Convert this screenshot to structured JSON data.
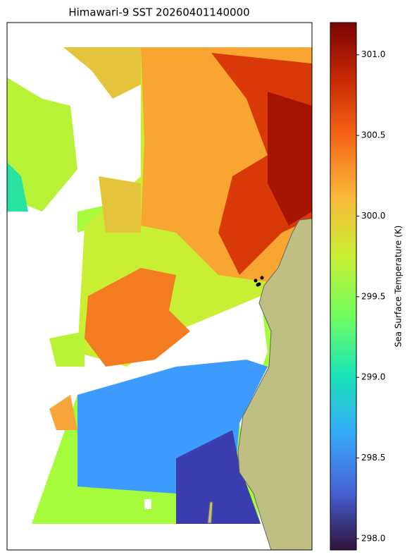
{
  "chart_data": {
    "type": "heatmap",
    "title": "Himawari-9 SST 20260401140000",
    "colorbar": {
      "label": "Sea Surface Temperature (K)",
      "colormap": "turbo",
      "lim": [
        297.93,
        301.2
      ],
      "ticks": [
        {
          "value": 298,
          "label": "298.0"
        },
        {
          "value": 298.5,
          "label": "298.5"
        },
        {
          "value": 299,
          "label": "299.0"
        },
        {
          "value": 299.5,
          "label": "299.5"
        },
        {
          "value": 300,
          "label": "300.0"
        },
        {
          "value": 300.5,
          "label": "300.5"
        },
        {
          "value": 301,
          "label": "301.0"
        }
      ]
    }
  }
}
